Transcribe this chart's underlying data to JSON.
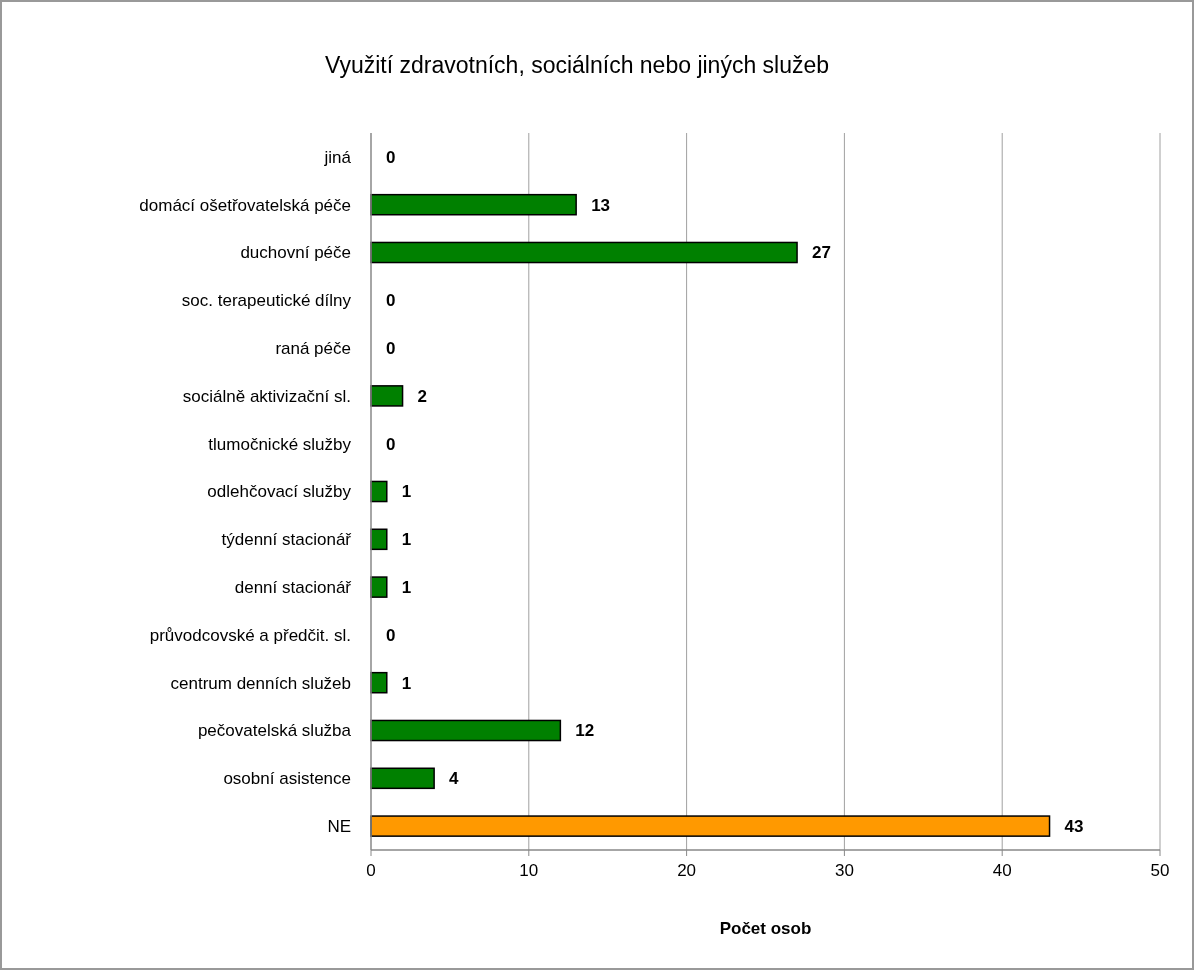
{
  "chart_data": {
    "type": "bar",
    "orientation": "horizontal",
    "title": "Využití zdravotních, sociálních  nebo jiných služeb",
    "xlabel": "Počet osob",
    "categories": [
      "jiná",
      "domácí ošetřovatelská péče",
      "duchovní péče",
      "soc. terapeutické dílny",
      "raná péče",
      "sociálně aktivizační sl.",
      "tlumočnické služby",
      "odlehčovací služby",
      "týdenní stacionář",
      "denní stacionář",
      "průvodcovské a předčit. sl.",
      "centrum denních služeb",
      "pečovatelská služba",
      "osobní asistence",
      "NE"
    ],
    "values": [
      0,
      13,
      27,
      0,
      0,
      2,
      0,
      1,
      1,
      1,
      0,
      1,
      12,
      4,
      43
    ],
    "colors": [
      "#008000",
      "#008000",
      "#008000",
      "#008000",
      "#008000",
      "#008000",
      "#008000",
      "#008000",
      "#008000",
      "#008000",
      "#008000",
      "#008000",
      "#008000",
      "#008000",
      "#ff9900"
    ],
    "xlim": [
      0,
      50
    ],
    "xticks": [
      0,
      10,
      20,
      30,
      40,
      50
    ],
    "grid": "x",
    "data_labels": true
  }
}
